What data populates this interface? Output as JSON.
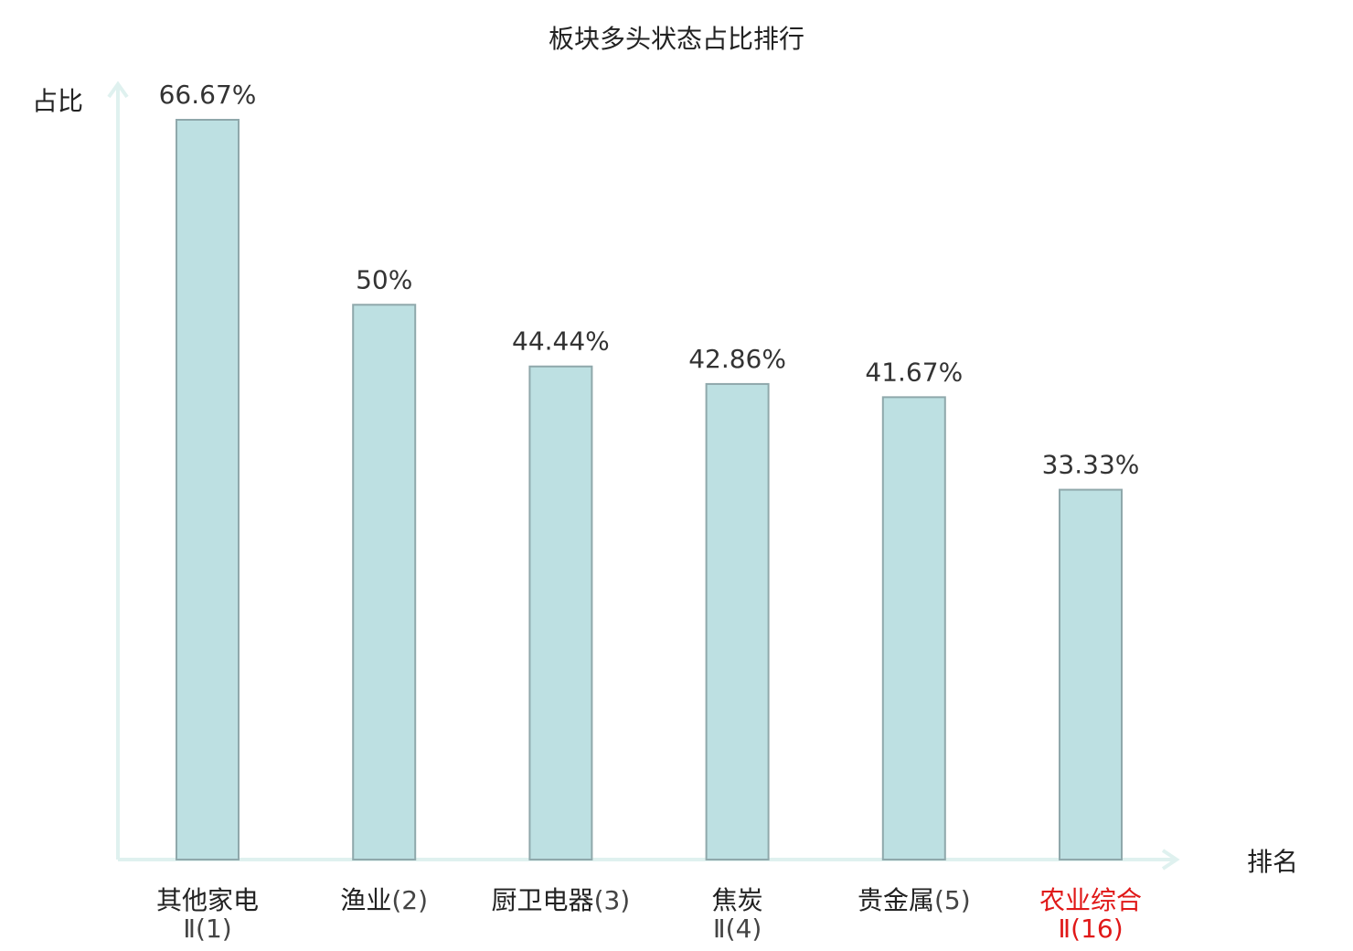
{
  "chart_data": {
    "type": "bar",
    "title": "板块多头状态占比排行",
    "ylabel": "占比",
    "xlabel": "排名",
    "ylim": [
      0,
      70
    ],
    "grid": false,
    "legend": "none",
    "colors": {
      "bar_fill": "#bde0e2",
      "bar_stroke": "#8fa8ab",
      "axis": "#dff1ef",
      "highlight": "#e01818"
    },
    "categories": [
      {
        "name": "其他家电",
        "rank": "Ⅱ(1)",
        "highlight": false
      },
      {
        "name": "渔业",
        "rank": "(2)",
        "highlight": false
      },
      {
        "name": "厨卫电器",
        "rank": "(3)",
        "highlight": false
      },
      {
        "name": "焦炭",
        "rank": "Ⅱ(4)",
        "highlight": false
      },
      {
        "name": "贵金属",
        "rank": "(5)",
        "highlight": false
      },
      {
        "name": "农业综合",
        "rank": "Ⅱ(16)",
        "highlight": true
      }
    ],
    "values": [
      66.67,
      50,
      44.44,
      42.86,
      41.67,
      33.33
    ],
    "value_labels": [
      "66.67%",
      "50%",
      "44.44%",
      "42.86%",
      "41.67%",
      "33.33%"
    ]
  }
}
